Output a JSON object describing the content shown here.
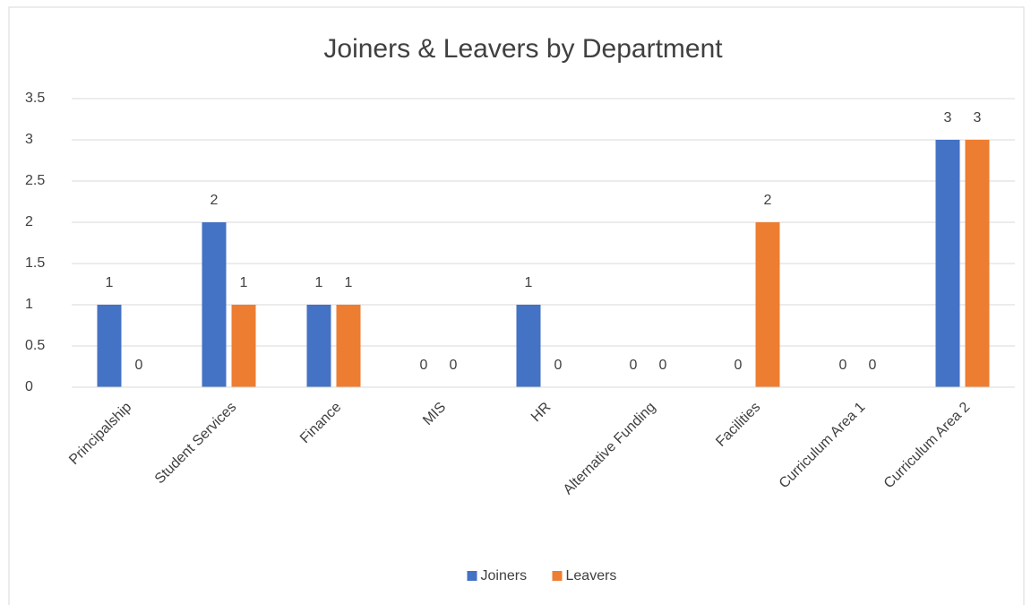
{
  "chart_data": {
    "type": "bar",
    "title": "Joiners & Leavers by Department",
    "categories": [
      "Principalship",
      "Student Services",
      "Finance",
      "MIS",
      "HR",
      "Alternative Funding",
      "Facilities",
      "Curriculum Area 1",
      "Curriculum Area 2"
    ],
    "series": [
      {
        "name": "Joiners",
        "color": "#4472c4",
        "values": [
          1,
          2,
          1,
          0,
          1,
          0,
          0,
          0,
          3
        ]
      },
      {
        "name": "Leavers",
        "color": "#ed7d31",
        "values": [
          0,
          1,
          1,
          0,
          0,
          0,
          2,
          0,
          3
        ]
      }
    ],
    "ylim": [
      0,
      3.5
    ],
    "yticks": [
      0,
      0.5,
      1,
      1.5,
      2,
      2.5,
      3,
      3.5
    ],
    "grid": true,
    "legend": "bottom"
  }
}
